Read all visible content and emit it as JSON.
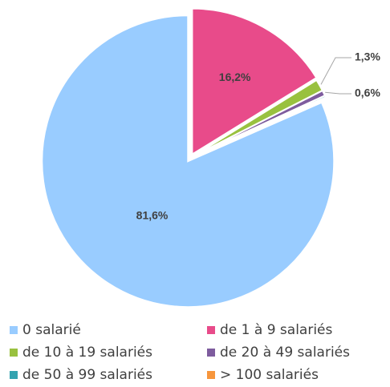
{
  "chart_data": {
    "type": "pie",
    "categories": [
      "0 salarié",
      "de 1 à 9 salariés",
      "de 10 à 19 salariés",
      "de 20 à 49 salariés",
      "de 50 à 99 salariés",
      "> 100 salariés"
    ],
    "values": [
      81.6,
      16.2,
      1.3,
      0.6,
      0.2,
      0.1
    ],
    "value_labels": [
      "81,6%",
      "16,2%",
      "1,3%",
      "0,6%",
      null,
      null
    ],
    "colors": [
      "#99ccff",
      "#e84b8a",
      "#99c13f",
      "#7e5c9e",
      "#33a3b0",
      "#f7963c"
    ],
    "legend": "bottom"
  }
}
